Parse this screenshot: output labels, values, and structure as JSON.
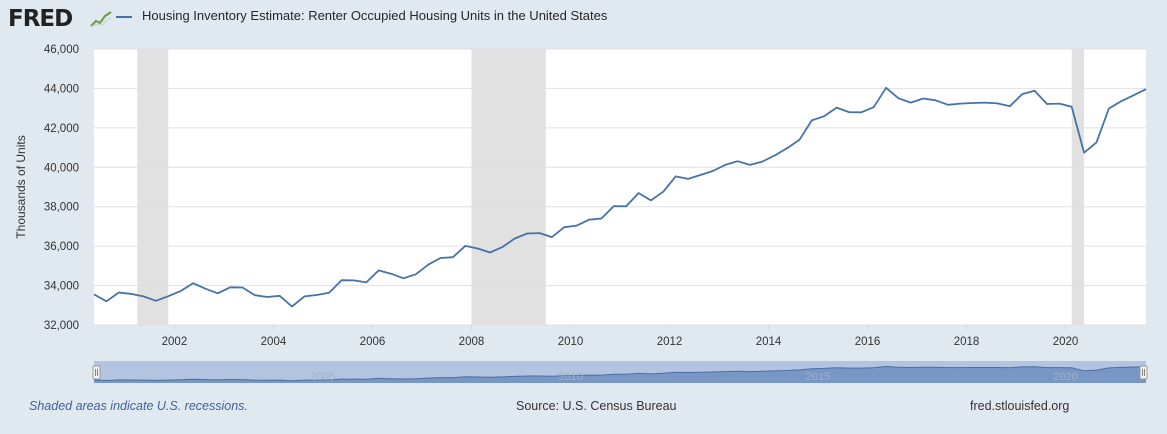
{
  "header": {
    "logo_text": "FRED",
    "title": "Housing Inventory Estimate: Renter Occupied Housing Units in the United States"
  },
  "footer": {
    "recession_note": "Shaded areas indicate U.S. recessions.",
    "source": "Source: U.S. Census Bureau",
    "site": "fred.stlouisfed.org"
  },
  "colors": {
    "line": "#4572a7",
    "recession": "#e1e1e1",
    "background": "#e1e9f0",
    "plot": "#ffffff",
    "grid": "#e0e0e0"
  },
  "navigator": {
    "labels": [
      "2005",
      "2010",
      "2015",
      "2020"
    ]
  },
  "chart_data": {
    "type": "line",
    "ylabel": "Thousands of Units",
    "xlabel": "",
    "xlim": [
      2000.375,
      2021.625
    ],
    "ylim": [
      32000,
      46000
    ],
    "yticks": [
      32000,
      34000,
      36000,
      38000,
      40000,
      42000,
      44000,
      46000
    ],
    "ytick_labels": [
      "32,000",
      "34,000",
      "36,000",
      "38,000",
      "40,000",
      "42,000",
      "44,000",
      "46,000"
    ],
    "xticks": [
      2002,
      2004,
      2006,
      2008,
      2010,
      2012,
      2014,
      2016,
      2018,
      2020
    ],
    "xtick_labels": [
      "2002",
      "2004",
      "2006",
      "2008",
      "2010",
      "2012",
      "2014",
      "2016",
      "2018",
      "2020"
    ],
    "grid": true,
    "recessions": [
      [
        2001.25,
        2001.875
      ],
      [
        2008.0,
        2009.5
      ],
      [
        2020.125,
        2020.375
      ]
    ],
    "series": [
      {
        "frequency": "quarterly",
        "x": [
          2000.375,
          2000.625,
          2000.875,
          2001.125,
          2001.375,
          2001.625,
          2001.875,
          2002.125,
          2002.375,
          2002.625,
          2002.875,
          2003.125,
          2003.375,
          2003.625,
          2003.875,
          2004.125,
          2004.375,
          2004.625,
          2004.875,
          2005.125,
          2005.375,
          2005.625,
          2005.875,
          2006.125,
          2006.375,
          2006.625,
          2006.875,
          2007.125,
          2007.375,
          2007.625,
          2007.875,
          2008.125,
          2008.375,
          2008.625,
          2008.875,
          2009.125,
          2009.375,
          2009.625,
          2009.875,
          2010.125,
          2010.375,
          2010.625,
          2010.875,
          2011.125,
          2011.375,
          2011.625,
          2011.875,
          2012.125,
          2012.375,
          2012.625,
          2012.875,
          2013.125,
          2013.375,
          2013.625,
          2013.875,
          2014.125,
          2014.375,
          2014.625,
          2014.875,
          2015.125,
          2015.375,
          2015.625,
          2015.875,
          2016.125,
          2016.375,
          2016.625,
          2016.875,
          2017.125,
          2017.375,
          2017.625,
          2017.875,
          2018.125,
          2018.375,
          2018.625,
          2018.875,
          2019.125,
          2019.375,
          2019.625,
          2019.875,
          2020.125,
          2020.375,
          2020.625,
          2020.875,
          2021.125,
          2021.375,
          2021.625
        ],
        "values": [
          33550,
          33200,
          33650,
          33580,
          33450,
          33230,
          33460,
          33720,
          34120,
          33840,
          33610,
          33910,
          33900,
          33510,
          33420,
          33480,
          32940,
          33450,
          33520,
          33640,
          34270,
          34260,
          34160,
          34770,
          34600,
          34370,
          34570,
          35060,
          35400,
          35440,
          36010,
          35880,
          35680,
          35950,
          36390,
          36640,
          36660,
          36460,
          36960,
          37040,
          37340,
          37400,
          38030,
          38020,
          38690,
          38320,
          38760,
          39540,
          39410,
          39610,
          39810,
          40120,
          40310,
          40120,
          40290,
          40600,
          40970,
          41400,
          42380,
          42590,
          43030,
          42800,
          42790,
          43050,
          44030,
          43500,
          43280,
          43490,
          43400,
          43170,
          43230,
          43260,
          43280,
          43240,
          43100,
          43710,
          43880,
          43210,
          43230,
          43070,
          40740,
          41260,
          42980,
          43350,
          43650,
          43960
        ]
      }
    ]
  }
}
